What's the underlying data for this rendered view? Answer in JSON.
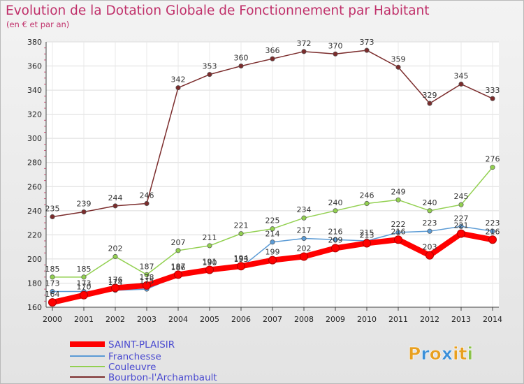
{
  "chart_data": {
    "type": "line",
    "title": "Evolution de la Dotation Globale de Fonctionnement par Habitant",
    "subtitle": "(en € et par an)",
    "xlabel": "",
    "ylabel": "",
    "ylim": [
      160,
      380
    ],
    "yticks": [
      160,
      180,
      200,
      220,
      240,
      260,
      280,
      300,
      320,
      340,
      360,
      380
    ],
    "categories": [
      "2000",
      "2001",
      "2002",
      "2003",
      "2004",
      "2005",
      "2006",
      "2007",
      "2008",
      "2009",
      "2010",
      "2011",
      "2012",
      "2013",
      "2014"
    ],
    "series": [
      {
        "name": "SAINT-PLAISIR",
        "color": "#ff0000",
        "values": [
          164,
          170,
          176,
          178,
          187,
          191,
          194,
          199,
          202,
          209,
          213,
          216,
          203,
          221,
          216
        ]
      },
      {
        "name": "Franchesse",
        "color": "#5b9bd5",
        "values": [
          173,
          173,
          174,
          175,
          186,
          190,
          193,
          214,
          217,
          216,
          215,
          222,
          223,
          227,
          223
        ]
      },
      {
        "name": "Couleuvre",
        "color": "#92d050",
        "values": [
          185,
          185,
          202,
          187,
          207,
          211,
          221,
          225,
          234,
          240,
          246,
          249,
          240,
          245,
          276
        ]
      },
      {
        "name": "Bourbon-l'Archambault",
        "color": "#7b2c2c",
        "values": [
          235,
          239,
          244,
          246,
          342,
          353,
          360,
          366,
          372,
          370,
          373,
          359,
          329,
          345,
          333
        ]
      }
    ],
    "data_labels": {
      "SAINT-PLAISIR": [
        "164",
        "170",
        "176",
        "178",
        "187",
        "191",
        "194",
        "199",
        "202",
        "209",
        "213",
        "216",
        "203",
        "221",
        "216"
      ],
      "Franchesse": [
        "173",
        "173",
        "174",
        "175",
        "186",
        "190",
        "193",
        "214",
        "217",
        "216",
        "215",
        "222",
        "223",
        "227",
        "223"
      ],
      "Couleuvre": [
        "185",
        "185",
        "202",
        "187",
        "207",
        "211",
        "221",
        "225",
        "234",
        "240",
        "246",
        "249",
        "240",
        "245",
        "276"
      ],
      "Bourbon-l'Archambault": [
        "235",
        "239",
        "244",
        "246",
        "342",
        "353",
        "360",
        "366",
        "372",
        "370",
        "373",
        "359",
        "329",
        "345",
        "333"
      ]
    },
    "legend_position": "bottom-left"
  },
  "logo": {
    "letters": [
      "P",
      "r",
      "o",
      "x",
      "i",
      "t",
      "i"
    ],
    "colors": [
      "#e8a020",
      "#3a8fd8",
      "#e8a020",
      "#3a8fd8",
      "#e8a020",
      "#e8a020",
      "#8bc34a"
    ]
  }
}
